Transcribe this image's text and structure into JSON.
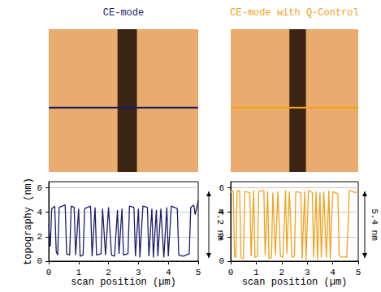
{
  "chart_data": [
    {
      "type": "line",
      "title": "CE-mode",
      "color": "#1c1c6b",
      "x_label": "scan position (µm)",
      "y_label": "topography (nm)",
      "annotations": [
        "4.2 nm"
      ],
      "x": [
        0,
        0.05,
        0.1,
        0.2,
        0.25,
        0.3,
        0.35,
        0.55,
        0.6,
        0.7,
        0.75,
        0.85,
        0.9,
        1.0,
        1.05,
        1.15,
        1.2,
        1.4,
        1.45,
        1.55,
        1.6,
        1.75,
        1.8,
        1.9,
        2.0,
        2.1,
        2.2,
        2.3,
        2.35,
        2.45,
        2.5,
        2.65,
        2.7,
        2.85,
        2.9,
        3.0,
        3.05,
        3.15,
        3.3,
        3.35,
        3.45,
        3.5,
        3.6,
        3.65,
        3.75,
        3.85,
        3.95,
        4.0,
        4.1,
        4.3,
        4.35,
        4.5,
        4.6,
        4.7,
        4.75,
        4.85,
        4.9,
        5.0
      ],
      "values": [
        3.0,
        1.2,
        4.3,
        4.5,
        0.8,
        0.5,
        4.4,
        4.6,
        0.6,
        0.5,
        4.5,
        4.4,
        0.5,
        4.3,
        0.4,
        0.5,
        4.3,
        4.5,
        0.4,
        4.4,
        0.5,
        0.6,
        4.3,
        0.5,
        4.4,
        0.5,
        0.4,
        4.2,
        0.6,
        4.3,
        0.5,
        0.6,
        4.5,
        4.4,
        0.4,
        4.3,
        0.3,
        4.5,
        4.4,
        0.4,
        4.3,
        0.3,
        4.2,
        0.4,
        4.3,
        0.3,
        4.4,
        0.4,
        4.5,
        4.3,
        0.5,
        0.4,
        0.5,
        0.6,
        4.4,
        4.6,
        3.8,
        5.0
      ],
      "xlim": [
        0,
        5
      ],
      "xticks": [
        0,
        1,
        2,
        3,
        4,
        5
      ],
      "ylim": [
        0,
        6.5
      ],
      "yticks": [
        0,
        2,
        4,
        6
      ],
      "grid": true
    },
    {
      "type": "line",
      "title": "CE-mode with Q-Control",
      "color": "#f5a01a",
      "x_label": "scan position (µm)",
      "annotations": [
        "5.4 nm"
      ],
      "x": [
        0,
        0.05,
        0.1,
        0.15,
        0.2,
        0.25,
        0.35,
        0.4,
        0.5,
        0.55,
        0.75,
        0.8,
        0.9,
        0.95,
        1.05,
        1.1,
        1.3,
        1.35,
        1.45,
        1.5,
        1.6,
        1.65,
        1.75,
        1.85,
        1.95,
        2.05,
        2.15,
        2.2,
        2.3,
        2.4,
        2.5,
        2.55,
        2.75,
        2.8,
        2.9,
        2.95,
        3.05,
        3.2,
        3.25,
        3.35,
        3.4,
        3.5,
        3.55,
        3.65,
        3.75,
        3.85,
        3.9,
        4.0,
        4.2,
        4.25,
        4.35,
        4.45,
        4.55,
        4.65,
        4.8,
        4.85,
        5.0
      ],
      "values": [
        5.6,
        5.8,
        5.7,
        0.4,
        0.3,
        5.7,
        5.8,
        0.3,
        0.2,
        5.7,
        5.6,
        0.4,
        5.8,
        0.3,
        0.4,
        5.7,
        5.8,
        0.5,
        5.7,
        0.2,
        0.3,
        5.6,
        0.5,
        5.7,
        0.4,
        0.3,
        5.8,
        0.6,
        5.7,
        0.3,
        0.4,
        5.7,
        5.6,
        0.2,
        5.7,
        0.1,
        5.8,
        5.6,
        0.3,
        5.7,
        0.1,
        5.6,
        0.3,
        5.7,
        0.3,
        5.8,
        0.2,
        5.7,
        5.5,
        0.5,
        0.3,
        0.4,
        0.3,
        5.8,
        5.7,
        5.6,
        5.7
      ],
      "xlim": [
        0,
        5
      ],
      "xticks": [
        0,
        1,
        2,
        3,
        4,
        5
      ],
      "ylim": [
        0,
        6.5
      ],
      "yticks": [
        0,
        2,
        4,
        6
      ],
      "grid": true
    }
  ]
}
